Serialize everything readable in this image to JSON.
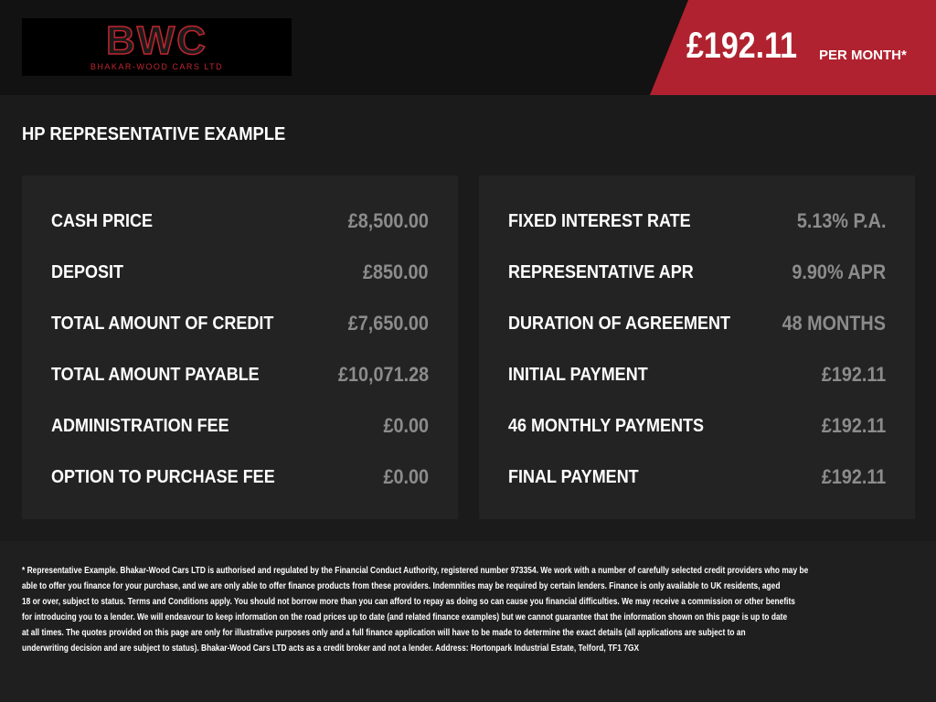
{
  "header": {
    "logo_text": "BWC",
    "logo_subtitle": "BHAKAR-WOOD CARS LTD",
    "monthly_price": "£192.11",
    "per_month_label": "PER MONTH*",
    "accent_color": "#b0222f"
  },
  "section_title": "HP REPRESENTATIVE EXAMPLE",
  "left_panel": [
    {
      "label": "CASH PRICE",
      "value": "£8,500.00"
    },
    {
      "label": "DEPOSIT",
      "value": "£850.00"
    },
    {
      "label": "TOTAL AMOUNT OF CREDIT",
      "value": "£7,650.00"
    },
    {
      "label": "TOTAL AMOUNT PAYABLE",
      "value": "£10,071.28"
    },
    {
      "label": "ADMINISTRATION FEE",
      "value": "£0.00"
    },
    {
      "label": "OPTION TO PURCHASE FEE",
      "value": "£0.00"
    }
  ],
  "right_panel": [
    {
      "label": "FIXED INTEREST RATE",
      "value": "5.13% P.A."
    },
    {
      "label": "REPRESENTATIVE APR",
      "value": "9.90% APR"
    },
    {
      "label": "DURATION OF AGREEMENT",
      "value": "48 MONTHS"
    },
    {
      "label": "INITIAL PAYMENT",
      "value": "£192.11"
    },
    {
      "label": "46 MONTHLY PAYMENTS",
      "value": "£192.11"
    },
    {
      "label": "FINAL PAYMENT",
      "value": "£192.11"
    }
  ],
  "disclaimer": [
    "* Representative Example. Bhakar-Wood Cars LTD is authorised and regulated by the Financial Conduct Authority, registered number 973354. We work with a number of carefully selected credit providers who may be",
    "able to offer you finance for your purchase, and we are only able to offer finance products from these providers. Indemnities may be required by certain lenders. Finance is only available to UK residents, aged",
    "18 or over, subject to status. Terms and Conditions apply. You should not borrow more than you can afford to repay as doing so can cause you financial difficulties. We may receive a commission or other benefits",
    "for introducing you to a lender. We will endeavour to keep information on the road prices up to date (and related finance examples) but we cannot guarantee that the information shown on this page is up to date",
    "at all times. The quotes provided on this page are only for illustrative purposes only and a full finance application will have to be made to determine the exact details (all applications are subject to an",
    "underwriting decision and are subject to status). Bhakar-Wood Cars LTD acts as a credit broker and not a lender. Address: Hortonpark Industrial Estate, Telford, TF1 7GX"
  ]
}
